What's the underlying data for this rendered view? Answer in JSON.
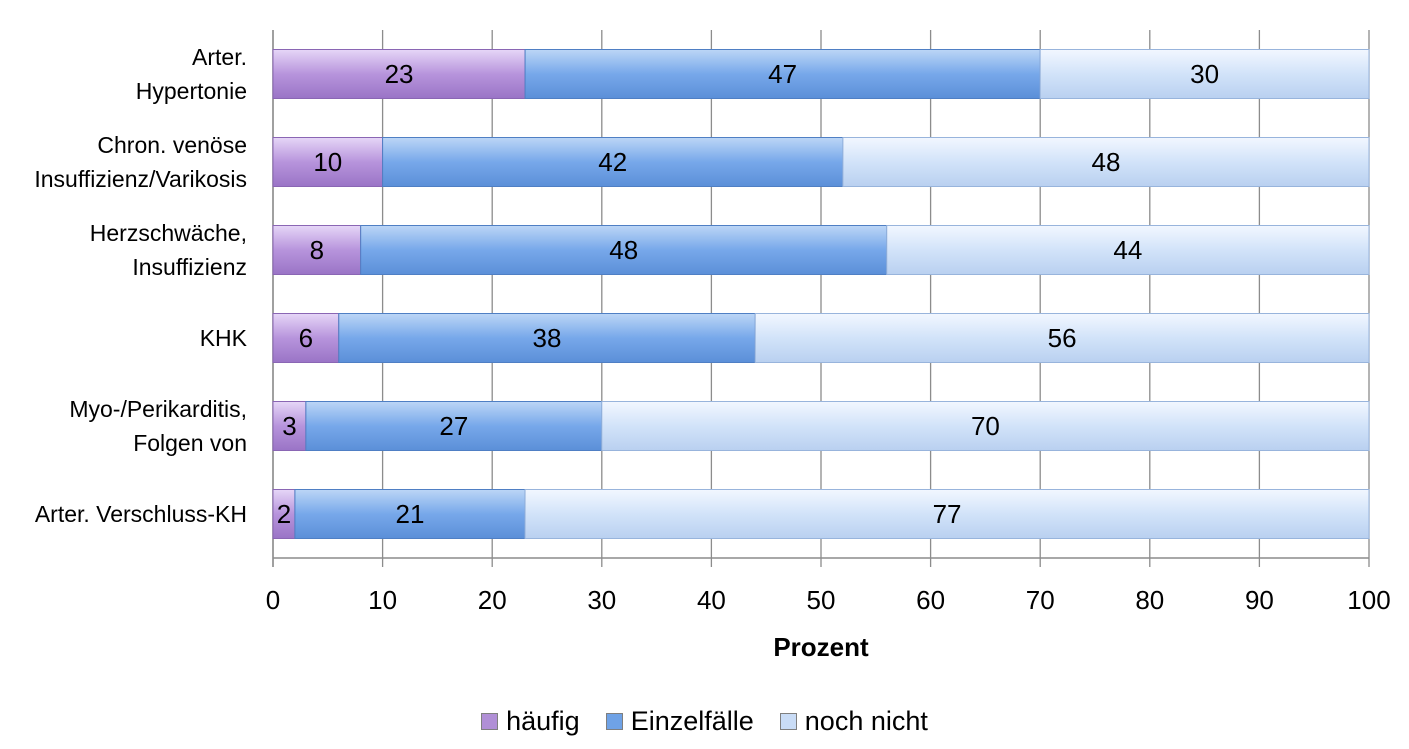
{
  "chart_data": {
    "type": "bar",
    "orientation": "horizontal",
    "stacked": true,
    "categories": [
      [
        "Arter.",
        "Hypertonie"
      ],
      [
        "Chron. venöse",
        "Insuffizienz/Varikosis"
      ],
      [
        "Herzschwäche,",
        "Insuffizienz"
      ],
      [
        "KHK"
      ],
      [
        "Myo-/Perikarditis,",
        "Folgen von"
      ],
      [
        "Arter. Verschluss-KH"
      ]
    ],
    "series": [
      {
        "name": "häufig",
        "values": [
          23,
          10,
          8,
          6,
          3,
          2
        ],
        "color": "#b08fd6"
      },
      {
        "name": "Einzelfälle",
        "values": [
          47,
          42,
          48,
          38,
          27,
          21
        ],
        "color": "#6fa2e6"
      },
      {
        "name": "noch nicht",
        "values": [
          30,
          48,
          44,
          56,
          70,
          77
        ],
        "color": "#c9dcf6"
      }
    ],
    "xlabel": "Prozent",
    "ylabel": "",
    "xlim": [
      0,
      100
    ],
    "xticks": [
      "0",
      "10",
      "20",
      "30",
      "40",
      "50",
      "60",
      "70",
      "80",
      "90",
      "100"
    ],
    "grid": true,
    "data_labels": true,
    "legend_position": "bottom"
  },
  "legend": {
    "items": [
      {
        "label": "häufig",
        "color": "#b08fd6"
      },
      {
        "label": "Einzelfälle",
        "color": "#6fa2e6"
      },
      {
        "label": "noch nicht",
        "color": "#c9dcf6"
      }
    ]
  }
}
